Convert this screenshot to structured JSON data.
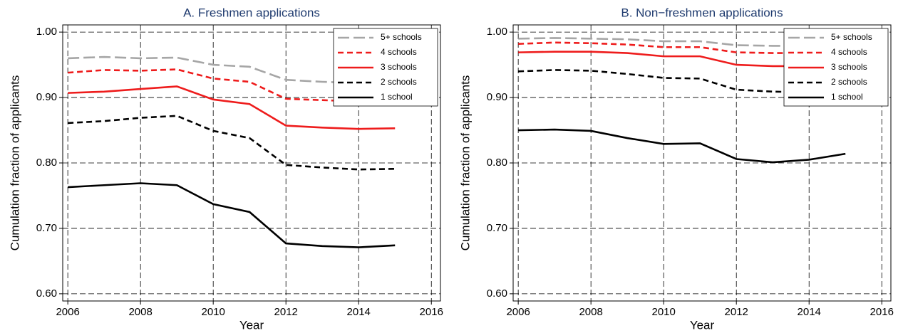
{
  "chart_data": [
    {
      "type": "line",
      "title": "A. Freshmen applications",
      "xlabel": "Year",
      "ylabel": "Cumulation fraction of applicants",
      "x": [
        2006,
        2007,
        2008,
        2009,
        2010,
        2011,
        2012,
        2013,
        2014,
        2015
      ],
      "series": [
        {
          "name": "5+ schools",
          "color": "#a6a6a6",
          "style": "longdash",
          "values": [
            0.96,
            0.962,
            0.96,
            0.961,
            0.95,
            0.947,
            0.927,
            0.924,
            0.922,
            0.922
          ]
        },
        {
          "name": "4 schools",
          "color": "#ee1c1c",
          "style": "dashed",
          "values": [
            0.938,
            0.942,
            0.941,
            0.943,
            0.929,
            0.924,
            0.898,
            0.896,
            0.894,
            0.894
          ]
        },
        {
          "name": "3 schools",
          "color": "#ee1c1c",
          "style": "solid",
          "values": [
            0.907,
            0.909,
            0.913,
            0.917,
            0.897,
            0.89,
            0.857,
            0.854,
            0.852,
            0.853
          ]
        },
        {
          "name": "2 schools",
          "color": "#000000",
          "style": "dashed",
          "values": [
            0.861,
            0.864,
            0.869,
            0.872,
            0.849,
            0.838,
            0.797,
            0.793,
            0.79,
            0.791
          ]
        },
        {
          "name": "1 school",
          "color": "#000000",
          "style": "solid",
          "values": [
            0.763,
            0.766,
            0.769,
            0.766,
            0.737,
            0.725,
            0.677,
            0.673,
            0.671,
            0.674
          ]
        }
      ],
      "xlim": [
        2005.86,
        2016.25
      ],
      "xticks": [
        2006,
        2008,
        2010,
        2012,
        2014,
        2016
      ],
      "ylim": [
        0.589,
        1.011
      ],
      "yticks": [
        {
          "value": 0.6,
          "label": "0.60"
        },
        {
          "value": 0.7,
          "label": "0.70"
        },
        {
          "value": 0.8,
          "label": "0.80"
        },
        {
          "value": 0.9,
          "label": "0.90"
        },
        {
          "value": 1.0,
          "label": "1.00"
        }
      ],
      "grid": true,
      "legend": "top-right"
    },
    {
      "type": "line",
      "title": "B. Non−freshmen applications",
      "xlabel": "Year",
      "ylabel": "Cumulation fraction of applicants",
      "x": [
        2006,
        2007,
        2008,
        2009,
        2010,
        2011,
        2012,
        2013,
        2014,
        2015
      ],
      "series": [
        {
          "name": "5+ schools",
          "color": "#a6a6a6",
          "style": "longdash",
          "values": [
            0.99,
            0.991,
            0.99,
            0.989,
            0.986,
            0.986,
            0.98,
            0.979,
            0.979,
            0.979
          ]
        },
        {
          "name": "4 schools",
          "color": "#ee1c1c",
          "style": "dashed",
          "values": [
            0.982,
            0.984,
            0.983,
            0.981,
            0.977,
            0.977,
            0.969,
            0.968,
            0.968,
            0.968
          ]
        },
        {
          "name": "3 schools",
          "color": "#ee1c1c",
          "style": "solid",
          "values": [
            0.969,
            0.97,
            0.97,
            0.968,
            0.963,
            0.963,
            0.95,
            0.948,
            0.948,
            0.948
          ]
        },
        {
          "name": "2 schools",
          "color": "#000000",
          "style": "dashed",
          "values": [
            0.94,
            0.942,
            0.941,
            0.936,
            0.93,
            0.929,
            0.912,
            0.909,
            0.908,
            0.908
          ]
        },
        {
          "name": "1 school",
          "color": "#000000",
          "style": "solid",
          "values": [
            0.85,
            0.851,
            0.849,
            0.838,
            0.829,
            0.83,
            0.806,
            0.801,
            0.805,
            0.814
          ]
        }
      ],
      "xlim": [
        2005.86,
        2016.25
      ],
      "xticks": [
        2006,
        2008,
        2010,
        2012,
        2014,
        2016
      ],
      "ylim": [
        0.589,
        1.011
      ],
      "yticks": [
        {
          "value": 0.6,
          "label": "0.60"
        },
        {
          "value": 0.7,
          "label": "0.70"
        },
        {
          "value": 0.8,
          "label": "0.80"
        },
        {
          "value": 0.9,
          "label": "0.90"
        },
        {
          "value": 1.0,
          "label": "1.00"
        }
      ],
      "grid": true,
      "legend": "top-right"
    }
  ]
}
